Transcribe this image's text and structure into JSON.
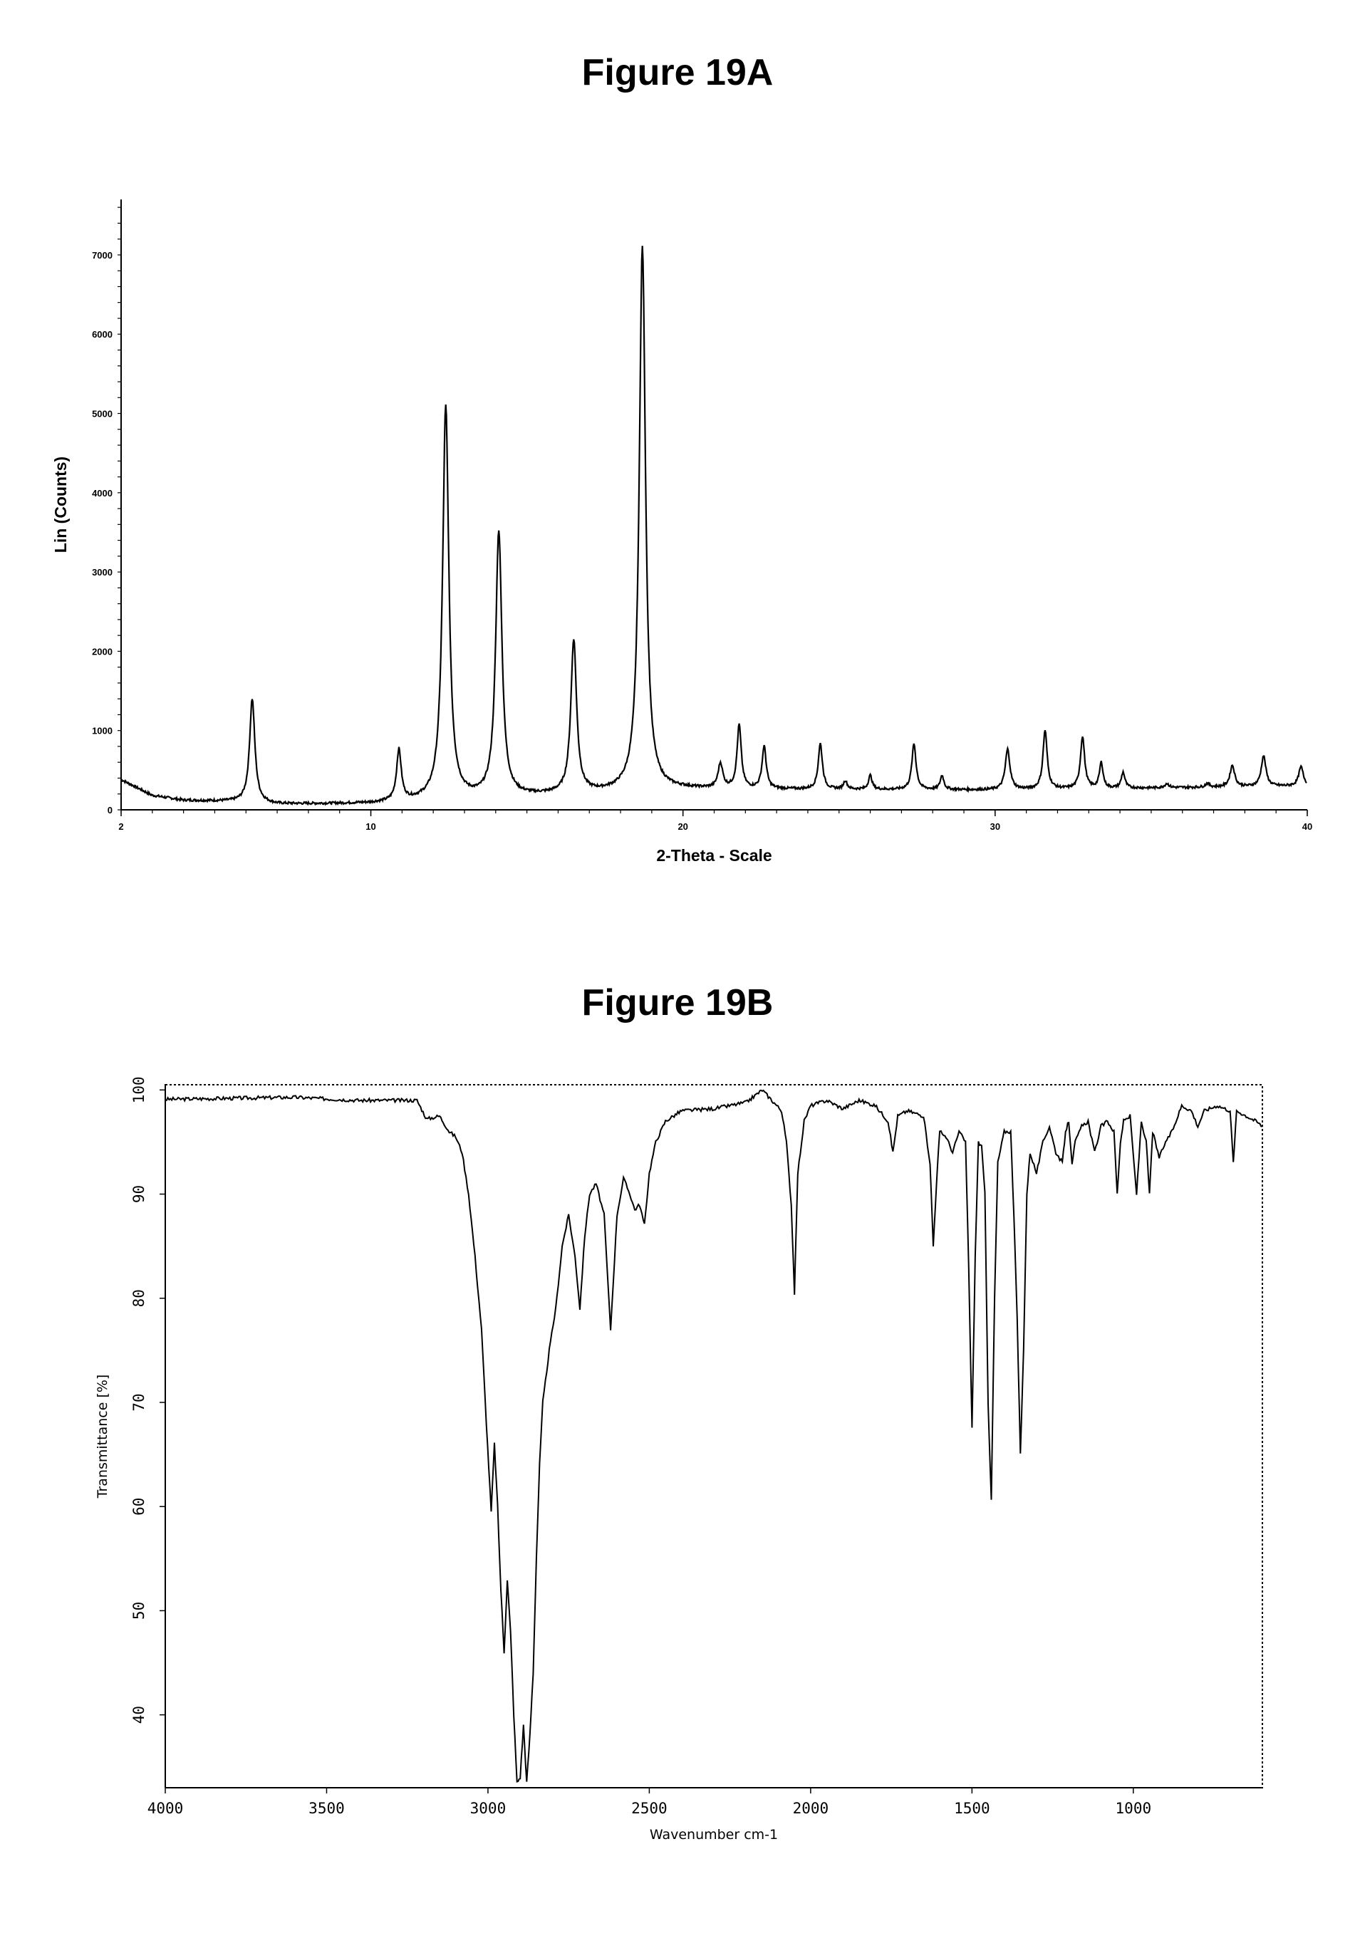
{
  "figures": {
    "a_title": "Figure 19A",
    "b_title": "Figure 19B"
  },
  "chart_data": [
    {
      "type": "line",
      "title": "Figure 19A",
      "xlabel": "2-Theta - Scale",
      "ylabel": "Lin (Counts)",
      "xlim": [
        2,
        40
      ],
      "ylim": [
        0,
        7700
      ],
      "xticks": [
        2,
        10,
        20,
        30,
        40
      ],
      "yticks": [
        0,
        1000,
        2000,
        3000,
        4000,
        5000,
        6000,
        7000
      ],
      "grid": false,
      "baseline": [
        [
          2,
          380
        ],
        [
          3,
          180
        ],
        [
          4,
          120
        ],
        [
          5,
          110
        ],
        [
          6,
          100
        ],
        [
          7,
          70
        ],
        [
          10,
          80
        ],
        [
          20,
          260
        ],
        [
          30,
          250
        ],
        [
          40,
          300
        ]
      ],
      "peaks": [
        {
          "x": 6.2,
          "y": 1400,
          "w": 0.1
        },
        {
          "x": 10.9,
          "y": 740,
          "w": 0.09
        },
        {
          "x": 12.4,
          "y": 5080,
          "w": 0.12
        },
        {
          "x": 14.1,
          "y": 3500,
          "w": 0.12
        },
        {
          "x": 16.5,
          "y": 2130,
          "w": 0.11
        },
        {
          "x": 18.7,
          "y": 7100,
          "w": 0.12
        },
        {
          "x": 21.2,
          "y": 570,
          "w": 0.09
        },
        {
          "x": 21.8,
          "y": 1060,
          "w": 0.08
        },
        {
          "x": 22.6,
          "y": 790,
          "w": 0.08
        },
        {
          "x": 24.4,
          "y": 830,
          "w": 0.08
        },
        {
          "x": 25.2,
          "y": 360,
          "w": 0.07
        },
        {
          "x": 26.0,
          "y": 430,
          "w": 0.07
        },
        {
          "x": 27.4,
          "y": 830,
          "w": 0.08
        },
        {
          "x": 28.3,
          "y": 430,
          "w": 0.07
        },
        {
          "x": 30.4,
          "y": 760,
          "w": 0.09
        },
        {
          "x": 31.6,
          "y": 1000,
          "w": 0.08
        },
        {
          "x": 32.8,
          "y": 920,
          "w": 0.08
        },
        {
          "x": 33.4,
          "y": 590,
          "w": 0.07
        },
        {
          "x": 34.1,
          "y": 470,
          "w": 0.07
        },
        {
          "x": 35.5,
          "y": 330,
          "w": 0.08
        },
        {
          "x": 36.8,
          "y": 330,
          "w": 0.08
        },
        {
          "x": 37.6,
          "y": 560,
          "w": 0.09
        },
        {
          "x": 38.6,
          "y": 680,
          "w": 0.09
        },
        {
          "x": 39.8,
          "y": 540,
          "w": 0.09
        }
      ]
    },
    {
      "type": "line",
      "title": "Figure 19B",
      "xlabel": "Wavenumber cm-1",
      "ylabel": "Transmittance [%]",
      "xlim": [
        4000,
        600
      ],
      "ylim": [
        33,
        100.5
      ],
      "xticks": [
        4000,
        3500,
        3000,
        2500,
        2000,
        1500,
        1000
      ],
      "ytick_values": [
        40,
        50,
        60,
        70,
        80,
        90,
        100
      ],
      "ytick_labels": [
        "40",
        "50",
        "60",
        "70",
        "80",
        "90",
        "100"
      ],
      "grid": false,
      "points": [
        [
          4000,
          99.1
        ],
        [
          3600,
          99.3
        ],
        [
          3400,
          99.0
        ],
        [
          3220,
          99.0
        ],
        [
          3190,
          97.2
        ],
        [
          3150,
          97.5
        ],
        [
          3120,
          96.0
        ],
        [
          3100,
          95.5
        ],
        [
          3080,
          94.0
        ],
        [
          3060,
          90.0
        ],
        [
          3040,
          84.0
        ],
        [
          3020,
          77.0
        ],
        [
          3005,
          68.0
        ],
        [
          2990,
          59.5
        ],
        [
          2980,
          66.0
        ],
        [
          2970,
          60.0
        ],
        [
          2960,
          52.0
        ],
        [
          2950,
          46.0
        ],
        [
          2940,
          53.0
        ],
        [
          2930,
          48.0
        ],
        [
          2920,
          40.0
        ],
        [
          2910,
          33.5
        ],
        [
          2900,
          34.0
        ],
        [
          2890,
          39.0
        ],
        [
          2880,
          33.5
        ],
        [
          2870,
          38.0
        ],
        [
          2860,
          44.0
        ],
        [
          2850,
          55.0
        ],
        [
          2840,
          64.0
        ],
        [
          2830,
          70.0
        ],
        [
          2810,
          75.0
        ],
        [
          2790,
          79.0
        ],
        [
          2770,
          85.0
        ],
        [
          2750,
          88.0
        ],
        [
          2730,
          84.0
        ],
        [
          2715,
          79.0
        ],
        [
          2700,
          86.0
        ],
        [
          2685,
          90.0
        ],
        [
          2665,
          91.0
        ],
        [
          2640,
          88.0
        ],
        [
          2620,
          77.0
        ],
        [
          2600,
          88.0
        ],
        [
          2580,
          91.5
        ],
        [
          2560,
          90.0
        ],
        [
          2545,
          88.5
        ],
        [
          2530,
          89.0
        ],
        [
          2515,
          87.0
        ],
        [
          2500,
          92.0
        ],
        [
          2480,
          95.0
        ],
        [
          2450,
          97.0
        ],
        [
          2400,
          98.0
        ],
        [
          2300,
          98.2
        ],
        [
          2200,
          98.8
        ],
        [
          2150,
          100.0
        ],
        [
          2120,
          99.0
        ],
        [
          2090,
          98.0
        ],
        [
          2075,
          95.0
        ],
        [
          2060,
          89.0
        ],
        [
          2050,
          80.5
        ],
        [
          2040,
          92.0
        ],
        [
          2020,
          97.0
        ],
        [
          2000,
          98.5
        ],
        [
          1950,
          99.0
        ],
        [
          1900,
          98.2
        ],
        [
          1850,
          99.0
        ],
        [
          1800,
          98.5
        ],
        [
          1760,
          97.0
        ],
        [
          1745,
          94.0
        ],
        [
          1730,
          97.5
        ],
        [
          1700,
          98.0
        ],
        [
          1650,
          97.5
        ],
        [
          1630,
          93.0
        ],
        [
          1620,
          85.0
        ],
        [
          1610,
          91.0
        ],
        [
          1600,
          96.0
        ],
        [
          1580,
          95.5
        ],
        [
          1560,
          94.0
        ],
        [
          1540,
          96.0
        ],
        [
          1520,
          95.0
        ],
        [
          1510,
          83.0
        ],
        [
          1500,
          67.5
        ],
        [
          1490,
          84.0
        ],
        [
          1480,
          95.0
        ],
        [
          1470,
          94.5
        ],
        [
          1460,
          90.0
        ],
        [
          1450,
          70.0
        ],
        [
          1440,
          60.5
        ],
        [
          1430,
          80.0
        ],
        [
          1420,
          93.0
        ],
        [
          1400,
          96.0
        ],
        [
          1380,
          96.0
        ],
        [
          1370,
          88.0
        ],
        [
          1360,
          78.0
        ],
        [
          1350,
          65.0
        ],
        [
          1340,
          75.0
        ],
        [
          1330,
          90.0
        ],
        [
          1320,
          94.0
        ],
        [
          1300,
          92.0
        ],
        [
          1280,
          95.0
        ],
        [
          1260,
          96.5
        ],
        [
          1240,
          94.0
        ],
        [
          1220,
          93.0
        ],
        [
          1210,
          96.0
        ],
        [
          1200,
          97.0
        ],
        [
          1190,
          93.0
        ],
        [
          1180,
          95.0
        ],
        [
          1160,
          96.5
        ],
        [
          1140,
          97.0
        ],
        [
          1120,
          94.0
        ],
        [
          1100,
          96.5
        ],
        [
          1080,
          97.0
        ],
        [
          1060,
          96.0
        ],
        [
          1050,
          90.0
        ],
        [
          1040,
          95.0
        ],
        [
          1030,
          97.0
        ],
        [
          1010,
          97.5
        ],
        [
          990,
          90.0
        ],
        [
          975,
          97.0
        ],
        [
          960,
          95.0
        ],
        [
          950,
          90.0
        ],
        [
          940,
          96.0
        ],
        [
          920,
          93.5
        ],
        [
          900,
          95.0
        ],
        [
          880,
          96.0
        ],
        [
          850,
          98.5
        ],
        [
          820,
          98.0
        ],
        [
          800,
          96.5
        ],
        [
          780,
          98.0
        ],
        [
          740,
          98.5
        ],
        [
          700,
          98.0
        ],
        [
          690,
          93.0
        ],
        [
          680,
          98.0
        ],
        [
          650,
          97.5
        ],
        [
          620,
          97.0
        ],
        [
          600,
          96.5
        ]
      ]
    }
  ]
}
